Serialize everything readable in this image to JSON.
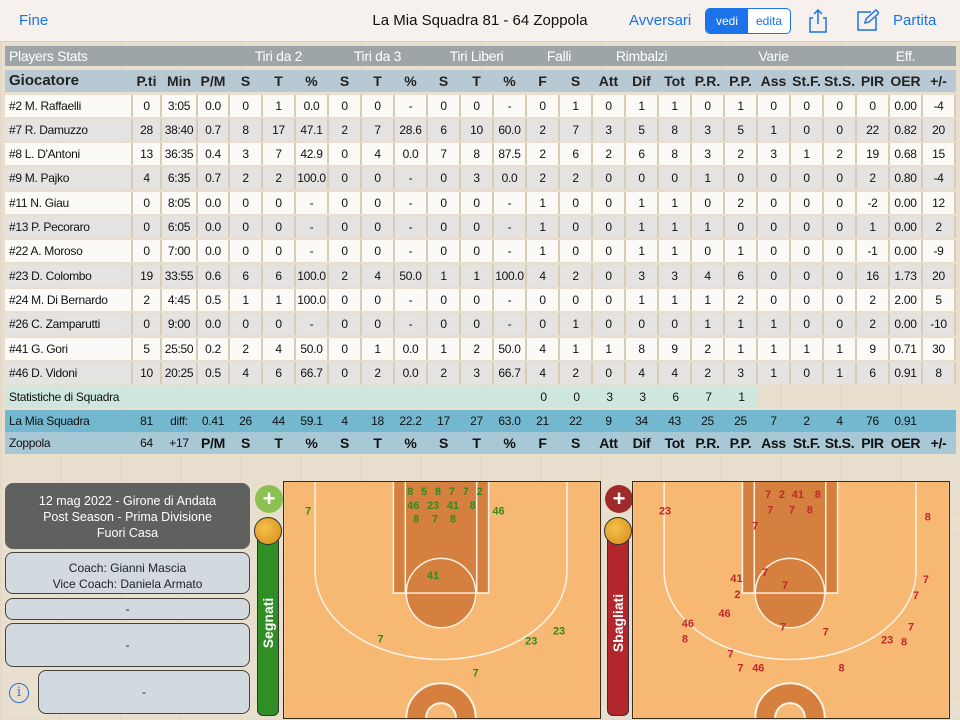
{
  "topbar": {
    "back": "Fine",
    "title": "La Mia Squadra 81 - 64 Zoppola",
    "opponents": "Avversari",
    "view": "vedi",
    "edit": "edita",
    "match": "Partita",
    "share_icon": "share-icon",
    "edit_icon": "compose-icon"
  },
  "stats": {
    "groups": [
      "Players Stats",
      "Tiri da 2",
      "Tiri da 3",
      "Tiri Liberi",
      "Falli",
      "Rimbalzi",
      "Varie",
      "Eff."
    ],
    "columns": [
      "Giocatore",
      "P.ti",
      "Min",
      "P/M",
      "S",
      "T",
      "%",
      "S",
      "T",
      "%",
      "S",
      "T",
      "%",
      "F",
      "S",
      "Att",
      "Dif",
      "Tot",
      "P.R.",
      "P.P.",
      "Ass",
      "St.F.",
      "St.S.",
      "PIR",
      "OER",
      "+/-"
    ],
    "players": [
      [
        "#2 M. Raffaelli",
        "0",
        "3:05",
        "0.0",
        "0",
        "1",
        "0.0",
        "0",
        "0",
        "-",
        "0",
        "0",
        "-",
        "0",
        "1",
        "0",
        "1",
        "1",
        "0",
        "1",
        "0",
        "0",
        "0",
        "0",
        "0.00",
        "-4"
      ],
      [
        "#7 R. Damuzzo",
        "28",
        "38:40",
        "0.7",
        "8",
        "17",
        "47.1",
        "2",
        "7",
        "28.6",
        "6",
        "10",
        "60.0",
        "2",
        "7",
        "3",
        "5",
        "8",
        "3",
        "5",
        "1",
        "0",
        "0",
        "22",
        "0.82",
        "20"
      ],
      [
        "#8 L. D'Antoni",
        "13",
        "36:35",
        "0.4",
        "3",
        "7",
        "42.9",
        "0",
        "4",
        "0.0",
        "7",
        "8",
        "87.5",
        "2",
        "6",
        "2",
        "6",
        "8",
        "3",
        "2",
        "3",
        "1",
        "2",
        "19",
        "0.68",
        "15"
      ],
      [
        "#9 M. Pajko",
        "4",
        "6:35",
        "0.7",
        "2",
        "2",
        "100.0",
        "0",
        "0",
        "-",
        "0",
        "3",
        "0.0",
        "2",
        "2",
        "0",
        "0",
        "0",
        "1",
        "0",
        "0",
        "0",
        "0",
        "2",
        "0.80",
        "-4"
      ],
      [
        "#11 N. Giau",
        "0",
        "8:05",
        "0.0",
        "0",
        "0",
        "-",
        "0",
        "0",
        "-",
        "0",
        "0",
        "-",
        "1",
        "0",
        "0",
        "1",
        "1",
        "0",
        "2",
        "0",
        "0",
        "0",
        "-2",
        "0.00",
        "12"
      ],
      [
        "#13 P. Pecoraro",
        "0",
        "6:05",
        "0.0",
        "0",
        "0",
        "-",
        "0",
        "0",
        "-",
        "0",
        "0",
        "-",
        "1",
        "0",
        "0",
        "1",
        "1",
        "1",
        "0",
        "0",
        "0",
        "0",
        "1",
        "0.00",
        "2"
      ],
      [
        "#22 A. Moroso",
        "0",
        "7:00",
        "0.0",
        "0",
        "0",
        "-",
        "0",
        "0",
        "-",
        "0",
        "0",
        "-",
        "1",
        "0",
        "0",
        "1",
        "1",
        "0",
        "1",
        "0",
        "0",
        "0",
        "-1",
        "0.00",
        "-9"
      ],
      [
        "#23 D. Colombo",
        "19",
        "33:55",
        "0.6",
        "6",
        "6",
        "100.0",
        "2",
        "4",
        "50.0",
        "1",
        "1",
        "100.0",
        "4",
        "2",
        "0",
        "3",
        "3",
        "4",
        "6",
        "0",
        "0",
        "0",
        "16",
        "1.73",
        "20"
      ],
      [
        "#24 M. Di Bernardo",
        "2",
        "4:45",
        "0.5",
        "1",
        "1",
        "100.0",
        "0",
        "0",
        "-",
        "0",
        "0",
        "-",
        "0",
        "0",
        "0",
        "1",
        "1",
        "1",
        "2",
        "0",
        "0",
        "0",
        "2",
        "2.00",
        "5"
      ],
      [
        "#26 C. Zamparutti",
        "0",
        "9:00",
        "0.0",
        "0",
        "0",
        "-",
        "0",
        "0",
        "-",
        "0",
        "0",
        "-",
        "0",
        "1",
        "0",
        "0",
        "0",
        "1",
        "1",
        "1",
        "0",
        "0",
        "2",
        "0.00",
        "-10"
      ],
      [
        "#41 G. Gori",
        "5",
        "25:50",
        "0.2",
        "2",
        "4",
        "50.0",
        "0",
        "1",
        "0.0",
        "1",
        "2",
        "50.0",
        "4",
        "1",
        "1",
        "8",
        "9",
        "2",
        "1",
        "1",
        "1",
        "1",
        "9",
        "0.71",
        "30"
      ],
      [
        "#46 D. Vidoni",
        "10",
        "20:25",
        "0.5",
        "4",
        "6",
        "66.7",
        "0",
        "2",
        "0.0",
        "2",
        "3",
        "66.7",
        "4",
        "2",
        "0",
        "4",
        "4",
        "2",
        "3",
        "1",
        "0",
        "1",
        "6",
        "0.91",
        "8"
      ]
    ],
    "team_stats": {
      "label": "Statistiche di Squadra",
      "values": [
        "0",
        "0",
        "3",
        "3",
        "6",
        "7",
        "1"
      ]
    },
    "my_team": {
      "name": "La Mia Squadra",
      "points": "81",
      "diff_label": "diff:",
      "values": [
        "0.41",
        "26",
        "44",
        "59.1",
        "4",
        "18",
        "22.2",
        "17",
        "27",
        "63.0",
        "21",
        "22",
        "9",
        "34",
        "43",
        "25",
        "25",
        "7",
        "2",
        "4",
        "76",
        "0.91",
        ""
      ]
    },
    "opponent": {
      "name": "Zoppola",
      "points": "64",
      "diff": "+17"
    }
  },
  "game_info": {
    "line1": "12 mag 2022 - Girone di Andata",
    "line2": "Post Season - Prima Divisione",
    "line3": "Fuori Casa",
    "coach": "Coach: Gianni Mascia",
    "vice_coach": "Vice Coach: Daniela Armato",
    "field1": "-",
    "field2": "-",
    "field3": "-"
  },
  "shots": {
    "made": {
      "label": "Segnati",
      "color": "#2e8b1e",
      "bar_color": "#2f8f24",
      "labels": [
        "7",
        "41",
        "8",
        "5",
        "8",
        "7",
        "7",
        "46",
        "8",
        "2",
        "8",
        "23",
        "7",
        "8",
        "46",
        "41",
        "7",
        "23",
        "23",
        "7"
      ]
    },
    "missed": {
      "label": "Sbagliati",
      "color": "#c0272d",
      "bar_color": "#b3262b",
      "labels": [
        "23",
        "7",
        "2",
        "41",
        "8",
        "7",
        "7",
        "8",
        "7",
        "8",
        "41",
        "2",
        "7",
        "7",
        "7",
        "7",
        "46",
        "7",
        "7",
        "7",
        "23",
        "8",
        "7",
        "7",
        "8",
        "46",
        "46",
        "8"
      ]
    }
  }
}
